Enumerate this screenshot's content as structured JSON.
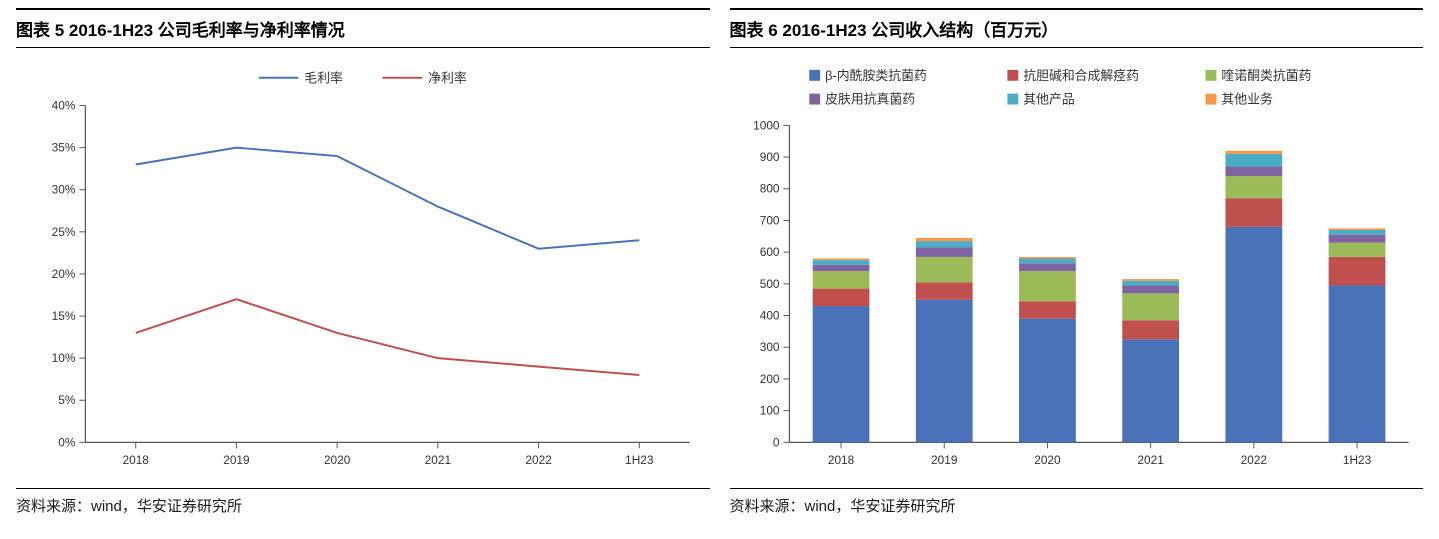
{
  "left": {
    "title": "图表 5 2016-1H23 公司毛利率与净利率情况",
    "source": "资料来源：wind，华安证券研究所",
    "chart": {
      "type": "line",
      "categories": [
        "2018",
        "2019",
        "2020",
        "2021",
        "2022",
        "1H23"
      ],
      "series": [
        {
          "name": "毛利率",
          "color": "#4a72b8",
          "values": [
            33,
            35,
            34,
            28,
            23,
            24
          ]
        },
        {
          "name": "净利率",
          "color": "#c0504d",
          "values": [
            13,
            17,
            13,
            10,
            9,
            8
          ]
        }
      ],
      "ylim": [
        0,
        40
      ],
      "ytick_step": 5,
      "y_suffix": "%",
      "line_width": 2,
      "background_color": "#ffffff",
      "axis_color": "#555555",
      "tick_color": "#555555",
      "label_fontsize": 12,
      "legend_fontsize": 13
    }
  },
  "right": {
    "title": "图表 6 2016-1H23 公司收入结构（百万元）",
    "source": "资料来源：wind，华安证券研究所",
    "chart": {
      "type": "stacked-bar",
      "categories": [
        "2018",
        "2019",
        "2020",
        "2021",
        "2022",
        "1H23"
      ],
      "series": [
        {
          "name": "β-内酰胺类抗菌药",
          "color": "#4a72b8",
          "values": [
            430,
            450,
            390,
            325,
            680,
            495
          ]
        },
        {
          "name": "抗胆碱和合成解痉药",
          "color": "#c0504d",
          "values": [
            55,
            55,
            55,
            60,
            90,
            90
          ]
        },
        {
          "name": "喹诺酮类抗菌药",
          "color": "#9bbb59",
          "values": [
            55,
            80,
            95,
            85,
            70,
            45
          ]
        },
        {
          "name": "皮肤用抗真菌药",
          "color": "#8064a2",
          "values": [
            20,
            30,
            25,
            25,
            30,
            25
          ]
        },
        {
          "name": "其他产品",
          "color": "#4bacc6",
          "values": [
            15,
            20,
            15,
            15,
            40,
            15
          ]
        },
        {
          "name": "其他业务",
          "color": "#f79646",
          "values": [
            5,
            10,
            5,
            5,
            10,
            5
          ]
        }
      ],
      "ylim": [
        0,
        1000
      ],
      "ytick_step": 100,
      "background_color": "#ffffff",
      "axis_color": "#555555",
      "tick_color": "#555555",
      "bar_width": 0.55,
      "label_fontsize": 12,
      "legend_fontsize": 13,
      "legend_marker": "square"
    }
  }
}
